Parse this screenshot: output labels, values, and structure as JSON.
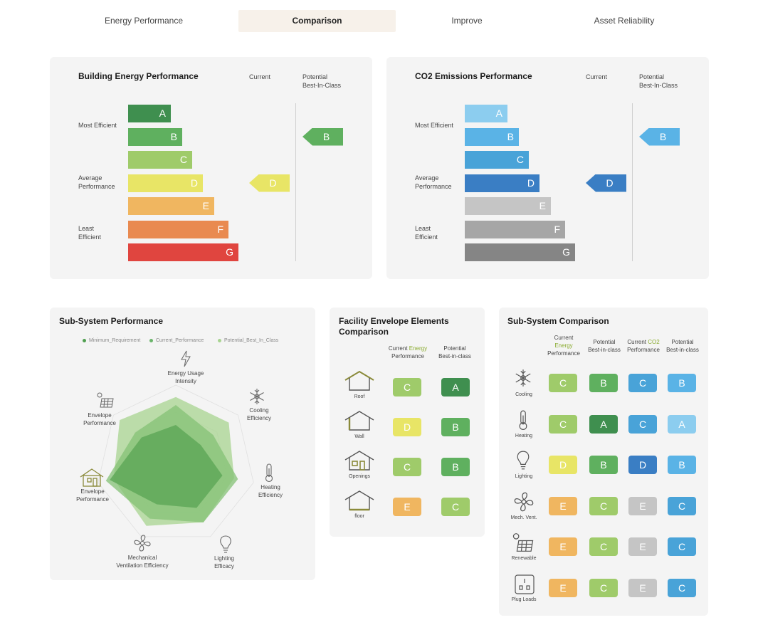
{
  "tabs": [
    "Energy Performance",
    "Comparison",
    "Improve",
    "Asset Reliability"
  ],
  "energy_panel": {
    "title": "Building Energy Performance",
    "col_current": "Current",
    "col_potential": "Potential\nBest-In-Class",
    "row_labels": [
      "Most Efficient",
      "Average\nPerformance",
      "Least\nEfficient"
    ],
    "grades": [
      "A",
      "B",
      "C",
      "D",
      "E",
      "F",
      "G"
    ],
    "colors": [
      "#3f8f4f",
      "#5fb05f",
      "#9fcb6a",
      "#e8e566",
      "#f0b660",
      "#e98a50",
      "#e0453f"
    ],
    "current": "D",
    "current_color": "#e8e566",
    "potential": "B",
    "potential_color": "#5fb05f"
  },
  "co2_panel": {
    "title": "CO2 Emissions Performance",
    "col_current": "Current",
    "col_potential": "Potential\nBest-In-Class",
    "row_labels": [
      "Most Efficient",
      "Average\nPerformance",
      "Least\nEfficient"
    ],
    "grades": [
      "A",
      "B",
      "C",
      "D",
      "E",
      "F",
      "G"
    ],
    "colors": [
      "#8ccdef",
      "#5ab3e6",
      "#49a3d8",
      "#3a7ec4",
      "#c5c5c5",
      "#a6a6a6",
      "#858585"
    ],
    "current": "D",
    "current_color": "#3a7ec4",
    "potential": "B",
    "potential_color": "#5ab3e6"
  },
  "subsystem_performance": {
    "title": "Sub-System Performance",
    "legend": [
      {
        "label": "Minimum_Requirement",
        "color": "#4f9f4f"
      },
      {
        "label": "Current_Performance",
        "color": "#6bb56b"
      },
      {
        "label": "Potential_Best_In_Class",
        "color": "#a8d490"
      }
    ],
    "axes": [
      "Energy Usage\nIntensity",
      "Cooling\nEfficiency",
      "Heating\nEfficiency",
      "Lighting\nEfficacy",
      "Mechanical\nVentilation Efficiency",
      "Envelope\nPerformance",
      "Envelope\nPerformance"
    ],
    "axis_icons": [
      "lightning-icon",
      "snowflake-icon",
      "thermometer-icon",
      "lightbulb-icon",
      "fan-icon",
      "house-icon",
      "solar-panel-icon"
    ],
    "chart_data": {
      "type": "radar",
      "categories": [
        "Energy Usage Intensity",
        "Cooling Efficiency",
        "Heating Efficiency",
        "Lighting Efficacy",
        "Mechanical Ventilation Efficiency",
        "Envelope Performance",
        "Envelope Performance"
      ],
      "series": [
        {
          "name": "Minimum_Requirement",
          "values": [
            0.5,
            0.4,
            0.6,
            0.6,
            0.55,
            0.85,
            0.55
          ]
        },
        {
          "name": "Current_Performance",
          "values": [
            0.75,
            0.6,
            0.8,
            0.8,
            0.75,
            0.9,
            0.65
          ]
        },
        {
          "name": "Potential_Best_In_Class",
          "values": [
            0.85,
            0.85,
            0.75,
            0.8,
            0.85,
            0.8,
            0.9
          ]
        }
      ],
      "range": [
        0,
        1
      ]
    }
  },
  "facility_envelope": {
    "title": "Facility Envelope Elements\nComparison",
    "col_current_a": "Current ",
    "col_current_b": "Energy",
    "col_current_c": "\nPerformance",
    "col_potential": "Potential\nBest-in-class",
    "rows": [
      {
        "label": "Roof",
        "icon": "roof-icon",
        "current": "C",
        "current_color": "#9fcb6a",
        "potential": "A",
        "potential_color": "#3f8f4f"
      },
      {
        "label": "Wall",
        "icon": "wall-icon",
        "current": "D",
        "current_color": "#e8e566",
        "potential": "B",
        "potential_color": "#5fb05f"
      },
      {
        "label": "Openings",
        "icon": "openings-icon",
        "current": "C",
        "current_color": "#9fcb6a",
        "potential": "B",
        "potential_color": "#5fb05f"
      },
      {
        "label": "floor",
        "icon": "floor-icon",
        "current": "E",
        "current_color": "#f0b660",
        "potential": "C",
        "potential_color": "#9fcb6a"
      }
    ]
  },
  "subsystem_comparison": {
    "title": "Sub-System Comparison",
    "headers": [
      {
        "a": "Current\n",
        "b": "Energy",
        "c": "\nPerformance"
      },
      {
        "a": "Potential\nBest-in-class",
        "b": "",
        "c": ""
      },
      {
        "a": "Current ",
        "b": "CO2",
        "c": "\nPerformance"
      },
      {
        "a": "Potential\nBest-in-class",
        "b": "",
        "c": ""
      }
    ],
    "rows": [
      {
        "label": "Cooling",
        "icon": "snowflake-icon",
        "values": [
          "C",
          "B",
          "C",
          "B"
        ],
        "colors": [
          "#9fcb6a",
          "#5fb05f",
          "#49a3d8",
          "#5ab3e6"
        ]
      },
      {
        "label": "Heating",
        "icon": "thermometer-icon",
        "values": [
          "C",
          "A",
          "C",
          "A"
        ],
        "colors": [
          "#9fcb6a",
          "#3f8f4f",
          "#49a3d8",
          "#8ccdef"
        ]
      },
      {
        "label": "Lighting",
        "icon": "lightbulb-icon",
        "values": [
          "D",
          "B",
          "D",
          "B"
        ],
        "colors": [
          "#e8e566",
          "#5fb05f",
          "#3a7ec4",
          "#5ab3e6"
        ]
      },
      {
        "label": "Mech. Vent.",
        "icon": "fan-icon",
        "values": [
          "E",
          "C",
          "E",
          "C"
        ],
        "colors": [
          "#f0b660",
          "#9fcb6a",
          "#c5c5c5",
          "#49a3d8"
        ]
      },
      {
        "label": "Renewable",
        "icon": "solar-panel-icon",
        "values": [
          "E",
          "C",
          "E",
          "C"
        ],
        "colors": [
          "#f0b660",
          "#9fcb6a",
          "#c5c5c5",
          "#49a3d8"
        ]
      },
      {
        "label": "Plug Loads",
        "icon": "plug-icon",
        "values": [
          "E",
          "C",
          "E",
          "C"
        ],
        "colors": [
          "#f0b660",
          "#9fcb6a",
          "#c5c5c5",
          "#49a3d8"
        ]
      }
    ]
  }
}
